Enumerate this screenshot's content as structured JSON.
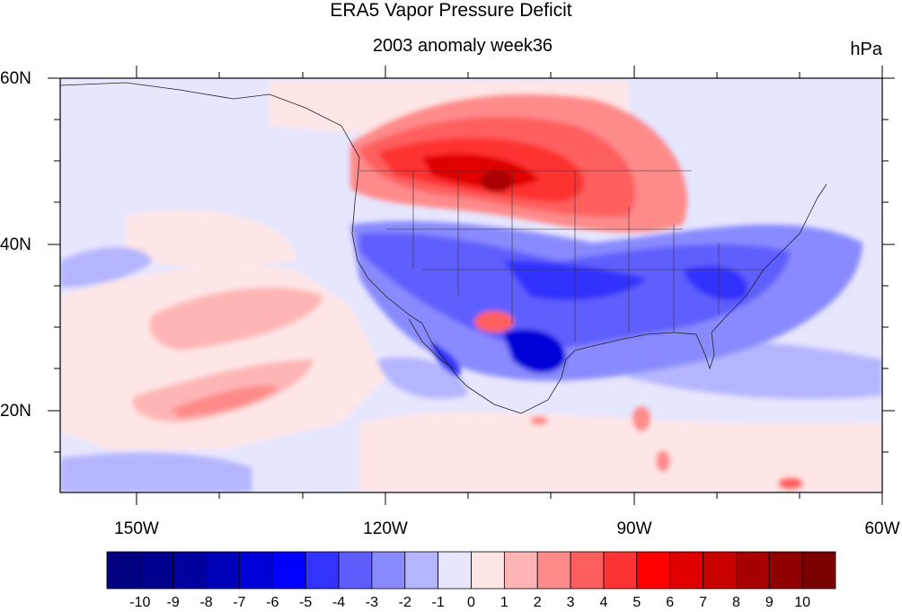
{
  "title": "ERA5 Vapor Pressure Deficit",
  "subtitle": "2003 anomaly week36",
  "unit": "hPa",
  "lat_ticks": [
    "60N",
    "40N",
    "20N"
  ],
  "lon_ticks": [
    "150W",
    "120W",
    "90W",
    "60W"
  ],
  "colorbar": {
    "labels": [
      "-10",
      "-9",
      "-8",
      "-7",
      "-6",
      "-5",
      "-4",
      "-3",
      "-2",
      "-1",
      "0",
      "1",
      "2",
      "3",
      "4",
      "5",
      "6",
      "7",
      "8",
      "9",
      "10"
    ],
    "colors": [
      "#000080",
      "#00008f",
      "#00009f",
      "#0000b8",
      "#0000d8",
      "#0000ff",
      "#3333ff",
      "#5e5eff",
      "#8a8aff",
      "#b5b5ff",
      "#e6e6ff",
      "#ffe6e6",
      "#ffb5b5",
      "#ff8a8a",
      "#ff5e5e",
      "#ff3333",
      "#ff0000",
      "#e00000",
      "#c80000",
      "#a80000",
      "#900000",
      "#780000"
    ]
  },
  "map": {
    "lon_range": [
      -160,
      -60
    ],
    "lat_range": [
      10,
      60
    ],
    "projection": "cylindrical-equidistant",
    "field": "vapor pressure deficit anomaly",
    "features": [
      "coastlines",
      "US state boundaries"
    ]
  }
}
